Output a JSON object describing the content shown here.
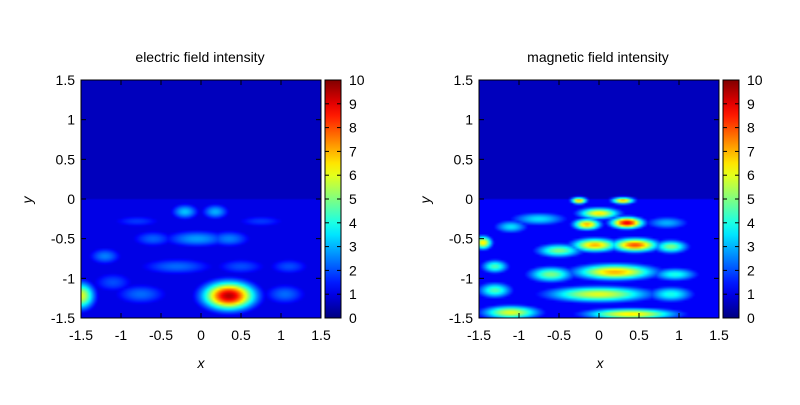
{
  "figure": {
    "panels": [
      {
        "title": "electric field intensity",
        "xlabel": "x",
        "ylabel": "y",
        "colormap": "jet"
      },
      {
        "title": "magnetic field intensity",
        "xlabel": "x",
        "ylabel": "y",
        "colormap": "jet"
      }
    ]
  },
  "chart_data": [
    {
      "type": "heatmap",
      "title": "electric field intensity",
      "xlabel": "x",
      "ylabel": "y",
      "xlim": [
        -1.5,
        1.5
      ],
      "ylim": [
        -1.5,
        1.5
      ],
      "x_ticks": [
        "-1.5",
        "-1",
        "-0.5",
        "0",
        "0.5",
        "1",
        "1.5"
      ],
      "y_ticks": [
        "1.5",
        "1",
        "0.5",
        "0",
        "-0.5",
        "-1",
        "-1.5"
      ],
      "colorbar": {
        "min": 0,
        "max": 10,
        "ticks": [
          "10",
          "9",
          "8",
          "7",
          "6",
          "5",
          "4",
          "3",
          "2",
          "1",
          "0"
        ]
      },
      "background_above_y0": 0.6,
      "background_below_y0": 1.0,
      "hotspots": [
        {
          "x": 0.35,
          "y": -1.22,
          "value": 9.5,
          "sx": 0.22,
          "sy": 0.12
        },
        {
          "x": -1.5,
          "y": -1.22,
          "value": 6.0,
          "sx": 0.12,
          "sy": 0.12
        },
        {
          "x": -0.2,
          "y": -0.16,
          "value": 3.2,
          "sx": 0.12,
          "sy": 0.07
        },
        {
          "x": 0.18,
          "y": -0.16,
          "value": 3.0,
          "sx": 0.12,
          "sy": 0.07
        },
        {
          "x": -0.05,
          "y": -0.5,
          "value": 2.8,
          "sx": 0.3,
          "sy": 0.08
        },
        {
          "x": 0.35,
          "y": -0.5,
          "value": 2.5,
          "sx": 0.2,
          "sy": 0.08
        },
        {
          "x": -0.6,
          "y": -0.5,
          "value": 2.2,
          "sx": 0.2,
          "sy": 0.08
        },
        {
          "x": -1.2,
          "y": -0.72,
          "value": 2.5,
          "sx": 0.15,
          "sy": 0.08
        },
        {
          "x": -0.3,
          "y": -0.85,
          "value": 2.3,
          "sx": 0.35,
          "sy": 0.08
        },
        {
          "x": 0.5,
          "y": -0.85,
          "value": 2.0,
          "sx": 0.25,
          "sy": 0.08
        },
        {
          "x": 1.1,
          "y": -0.85,
          "value": 2.0,
          "sx": 0.2,
          "sy": 0.08
        },
        {
          "x": -0.75,
          "y": -1.2,
          "value": 2.3,
          "sx": 0.25,
          "sy": 0.1
        },
        {
          "x": 1.05,
          "y": -1.2,
          "value": 2.3,
          "sx": 0.2,
          "sy": 0.1
        },
        {
          "x": -1.1,
          "y": -1.05,
          "value": 2.0,
          "sx": 0.2,
          "sy": 0.1
        },
        {
          "x": -0.8,
          "y": -0.28,
          "value": 1.8,
          "sx": 0.25,
          "sy": 0.06
        },
        {
          "x": 0.75,
          "y": -0.28,
          "value": 1.8,
          "sx": 0.25,
          "sy": 0.06
        }
      ]
    },
    {
      "type": "heatmap",
      "title": "magnetic field intensity",
      "xlabel": "x",
      "ylabel": "y",
      "xlim": [
        -1.5,
        1.5
      ],
      "ylim": [
        -1.5,
        1.5
      ],
      "x_ticks": [
        "-1.5",
        "-1",
        "-0.5",
        "0",
        "0.5",
        "1",
        "1.5"
      ],
      "y_ticks": [
        "1.5",
        "1",
        "0.5",
        "0",
        "-0.5",
        "-1",
        "-1.5"
      ],
      "colorbar": {
        "min": 0,
        "max": 10,
        "ticks": [
          "10",
          "9",
          "8",
          "7",
          "6",
          "5",
          "4",
          "3",
          "2",
          "1",
          "0"
        ]
      },
      "background_above_y0": 0.6,
      "background_below_y0": 1.2,
      "hotspots": [
        {
          "x": -0.25,
          "y": -0.02,
          "value": 7.0,
          "sx": 0.07,
          "sy": 0.03
        },
        {
          "x": 0.3,
          "y": -0.02,
          "value": 7.0,
          "sx": 0.1,
          "sy": 0.03
        },
        {
          "x": 0.0,
          "y": -0.18,
          "value": 6.5,
          "sx": 0.18,
          "sy": 0.05
        },
        {
          "x": 0.35,
          "y": -0.3,
          "value": 9.0,
          "sx": 0.14,
          "sy": 0.05
        },
        {
          "x": -0.15,
          "y": -0.32,
          "value": 7.0,
          "sx": 0.12,
          "sy": 0.05
        },
        {
          "x": 0.45,
          "y": -0.58,
          "value": 8.0,
          "sx": 0.2,
          "sy": 0.06
        },
        {
          "x": -0.05,
          "y": -0.58,
          "value": 7.0,
          "sx": 0.2,
          "sy": 0.06
        },
        {
          "x": 0.9,
          "y": -0.6,
          "value": 5.0,
          "sx": 0.15,
          "sy": 0.06
        },
        {
          "x": -0.5,
          "y": -0.65,
          "value": 5.0,
          "sx": 0.2,
          "sy": 0.06
        },
        {
          "x": -1.45,
          "y": -0.55,
          "value": 6.5,
          "sx": 0.08,
          "sy": 0.06
        },
        {
          "x": 0.2,
          "y": -0.92,
          "value": 7.0,
          "sx": 0.35,
          "sy": 0.07
        },
        {
          "x": -0.6,
          "y": -0.95,
          "value": 5.0,
          "sx": 0.2,
          "sy": 0.07
        },
        {
          "x": -1.3,
          "y": -0.85,
          "value": 4.5,
          "sx": 0.12,
          "sy": 0.06
        },
        {
          "x": 0.95,
          "y": -0.95,
          "value": 4.0,
          "sx": 0.2,
          "sy": 0.06
        },
        {
          "x": 0.0,
          "y": -1.2,
          "value": 6.0,
          "sx": 0.45,
          "sy": 0.07
        },
        {
          "x": -1.3,
          "y": -1.15,
          "value": 4.5,
          "sx": 0.15,
          "sy": 0.07
        },
        {
          "x": 0.9,
          "y": -1.2,
          "value": 4.0,
          "sx": 0.2,
          "sy": 0.07
        },
        {
          "x": -1.1,
          "y": -1.43,
          "value": 6.0,
          "sx": 0.25,
          "sy": 0.06
        },
        {
          "x": 0.4,
          "y": -1.45,
          "value": 6.5,
          "sx": 0.4,
          "sy": 0.05
        },
        {
          "x": -0.75,
          "y": -0.25,
          "value": 3.5,
          "sx": 0.25,
          "sy": 0.06
        },
        {
          "x": 0.85,
          "y": -0.3,
          "value": 3.0,
          "sx": 0.2,
          "sy": 0.06
        },
        {
          "x": -1.1,
          "y": -0.35,
          "value": 3.5,
          "sx": 0.15,
          "sy": 0.06
        }
      ]
    }
  ]
}
